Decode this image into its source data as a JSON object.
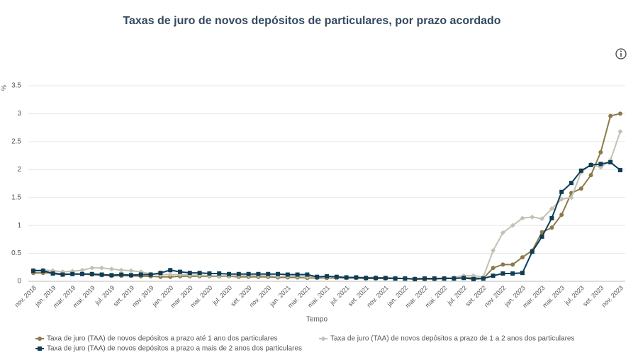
{
  "chart_data": {
    "type": "line",
    "title": "Taxas de juro de novos depósitos de particulares, por prazo acordado",
    "y_label": "%",
    "x_label": "Tempo",
    "categories": [
      "nov. 2018",
      null,
      "jan. 2019",
      null,
      "mar. 2019",
      null,
      "mai. 2019",
      null,
      "jul. 2019",
      null,
      "set. 2019",
      null,
      "nov. 2019",
      null,
      "jan. 2020",
      null,
      "mar. 2020",
      null,
      "mai. 2020",
      null,
      "jul. 2020",
      null,
      "set. 2020",
      null,
      "nov. 2020",
      null,
      "jan. 2021",
      null,
      "mar. 2021",
      null,
      "mai. 2021",
      null,
      "jul. 2021",
      null,
      "set. 2021",
      null,
      "nov. 2021",
      null,
      "jan. 2022",
      null,
      "mar. 2022",
      null,
      "mai. 2022",
      null,
      "jul. 2022",
      null,
      "set. 2022",
      null,
      "nov. 2022",
      null,
      "jan. 2023",
      null,
      "mar. 2023",
      null,
      "mai. 2023",
      null,
      "jul. 2023",
      null,
      "set. 2023",
      null,
      "nov. 2023"
    ],
    "series": [
      {
        "name": "Taxa de juro (TAA) de novos depósitos a prazo até 1 ano dos particulares",
        "color": "#8c7a4a",
        "marker": "circle",
        "values": [
          0.15,
          0.15,
          0.15,
          0.13,
          0.13,
          0.13,
          0.12,
          0.11,
          0.1,
          0.1,
          0.1,
          0.09,
          0.09,
          0.08,
          0.08,
          0.09,
          0.09,
          0.09,
          0.09,
          0.09,
          0.09,
          0.08,
          0.08,
          0.08,
          0.08,
          0.07,
          0.07,
          0.07,
          0.06,
          0.06,
          0.06,
          0.06,
          0.06,
          0.06,
          0.05,
          0.05,
          0.05,
          0.05,
          0.05,
          0.04,
          0.04,
          0.04,
          0.05,
          0.06,
          0.06,
          0.06,
          0.05,
          0.24,
          0.3,
          0.3,
          0.43,
          0.55,
          0.88,
          0.96,
          1.19,
          1.58,
          1.66,
          1.9,
          2.31,
          2.96,
          3.0
        ]
      },
      {
        "name": "Taxa de juro (TAA) de novos depósitos a prazo de 1 a 2 anos dos particulares",
        "color": "#c2c1b4",
        "marker": "diamond",
        "values": [
          0.2,
          0.2,
          0.19,
          0.17,
          0.18,
          0.2,
          0.24,
          0.24,
          0.22,
          0.2,
          0.19,
          0.17,
          0.13,
          0.12,
          0.12,
          0.12,
          0.11,
          0.11,
          0.1,
          0.1,
          0.1,
          0.1,
          0.1,
          0.1,
          0.1,
          0.09,
          0.09,
          0.09,
          0.08,
          0.08,
          0.08,
          0.07,
          0.07,
          0.07,
          0.07,
          0.07,
          0.06,
          0.06,
          0.05,
          0.05,
          0.05,
          0.05,
          0.06,
          0.07,
          0.1,
          0.1,
          0.08,
          0.55,
          0.87,
          1.0,
          1.13,
          1.15,
          1.12,
          1.3,
          1.47,
          1.5,
          1.95,
          2.1,
          2.04,
          2.17,
          2.68
        ]
      },
      {
        "name": "Taxa de juro (TAA) de novos depósitos a prazo a mais de 2 anos dos particulares",
        "color": "#0e3d55",
        "marker": "square",
        "values": [
          0.19,
          0.19,
          0.14,
          0.12,
          0.13,
          0.13,
          0.13,
          0.12,
          0.11,
          0.12,
          0.11,
          0.12,
          0.12,
          0.15,
          0.2,
          0.17,
          0.15,
          0.15,
          0.14,
          0.14,
          0.13,
          0.13,
          0.13,
          0.13,
          0.13,
          0.13,
          0.12,
          0.12,
          0.12,
          0.08,
          0.09,
          0.08,
          0.07,
          0.07,
          0.06,
          0.06,
          0.06,
          0.05,
          0.05,
          0.04,
          0.05,
          0.05,
          0.05,
          0.05,
          0.06,
          0.04,
          0.05,
          0.1,
          0.14,
          0.14,
          0.15,
          0.53,
          0.8,
          1.13,
          1.6,
          1.76,
          1.98,
          2.08,
          2.1,
          2.13,
          1.99
        ]
      }
    ],
    "ylim": [
      0,
      3.5
    ],
    "yticks": [
      0,
      0.5,
      1,
      1.5,
      2,
      2.5,
      3,
      3.5
    ],
    "grid": true
  }
}
